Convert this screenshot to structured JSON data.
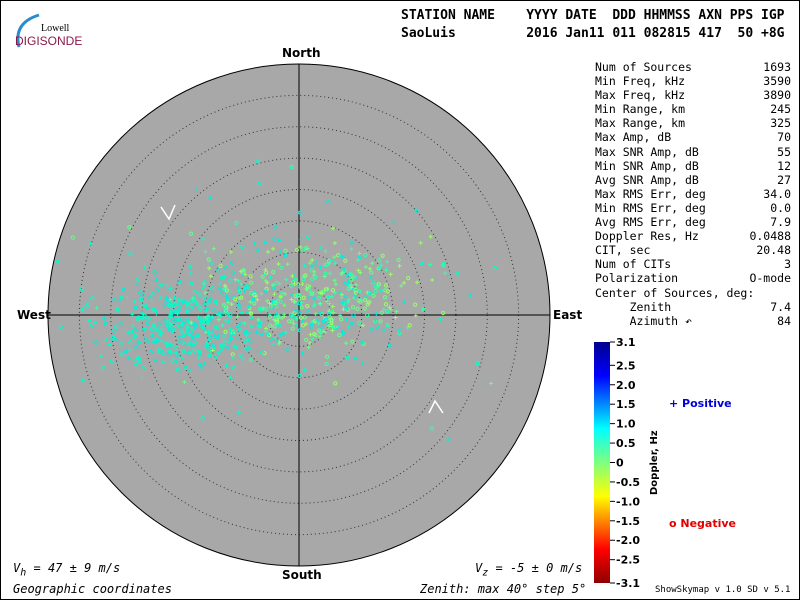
{
  "logo": {
    "line1": "Lowell",
    "line2": "DIGISONDE"
  },
  "header": {
    "labels": "STATION NAME    YYYY DATE  DDD HHMMSS AXN PPS IGP",
    "values": "SaoLuis         2016 Jan11 011 082815 417  50 +8G"
  },
  "directions": {
    "north": "North",
    "south": "South",
    "east": "East",
    "west": "West"
  },
  "stats": [
    {
      "label": "Num of Sources",
      "value": "1693"
    },
    {
      "label": "Min Freq, kHz",
      "value": "3590"
    },
    {
      "label": "Max Freq, kHz",
      "value": "3890"
    },
    {
      "label": "Min Range, km",
      "value": "245"
    },
    {
      "label": "Max Range, km",
      "value": "325"
    },
    {
      "label": "Max Amp, dB",
      "value": "70"
    },
    {
      "label": "Max SNR Amp, dB",
      "value": "55"
    },
    {
      "label": "Min SNR Amp, dB",
      "value": "12"
    },
    {
      "label": "Avg SNR Amp, dB",
      "value": "27"
    },
    {
      "label": "Max RMS Err, deg",
      "value": "34.0"
    },
    {
      "label": "Min RMS Err, deg",
      "value": "0.0"
    },
    {
      "label": "Avg RMS Err, deg",
      "value": "7.9"
    },
    {
      "label": "Doppler Res, Hz",
      "value": "0.0488"
    },
    {
      "label": "CIT, sec",
      "value": "20.48"
    },
    {
      "label": "Num of CITs",
      "value": "3"
    },
    {
      "label": "Polarization",
      "value": "O-mode"
    },
    {
      "label": "Center of Sources, deg:",
      "value": ""
    },
    {
      "label": "     Zenith",
      "value": "7.4"
    },
    {
      "label": "     Azimuth ↶",
      "value": "84"
    }
  ],
  "footer": {
    "vh": "V",
    "vh_sub": "h",
    "vh_val": " = 47 ± 9 m/s",
    "vz": "V",
    "vz_sub": "z",
    "vz_val": " = -5 ± 0 m/s",
    "coords": "Geographic coordinates",
    "zenith": "Zenith: max 40°  step 5°",
    "version": "ShowSkymap v 1.0   SD v 5.1"
  },
  "legend": {
    "positive": "+ Positive",
    "negative": "o Negative"
  },
  "chart_data": {
    "type": "scatter",
    "projection": "polar skymap",
    "zenith_max_deg": 40,
    "zenith_step_deg": 5,
    "colorbar": {
      "label": "Doppler, Hz",
      "min": -3.1,
      "max": 3.1,
      "ticks": [
        "3.1",
        "2.5",
        "2.0",
        "1.5",
        "1.0",
        "0.5",
        "0",
        "-0.5",
        "-1.0",
        "-1.5",
        "-2.0",
        "-2.5",
        "-3.1"
      ]
    },
    "colors": {
      "disk": "#a8a8a8",
      "positive": "#0000dd",
      "negative": "#e00000"
    }
  }
}
